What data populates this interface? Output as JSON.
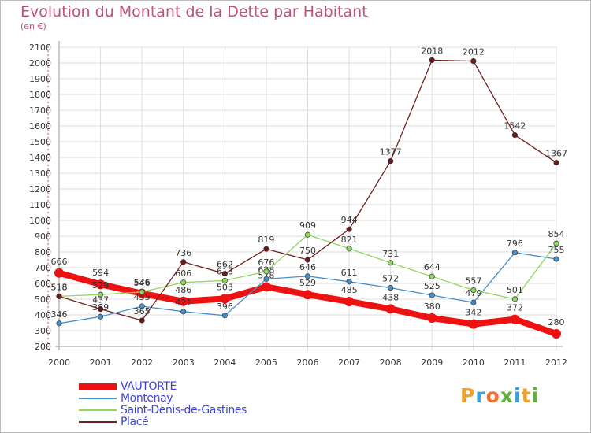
{
  "header": {
    "title": "Evolution du Montant de la Dette par Habitant",
    "subtitle": "(en €)"
  },
  "logo": {
    "text": "Proxiti",
    "letters": [
      "P",
      "r",
      "o",
      "x",
      "i",
      "t",
      "i"
    ],
    "colors": [
      "#f0a030",
      "#3aa0d8",
      "#f07030",
      "#60b040",
      "#3aa0d8",
      "#f0a030",
      "#60b040"
    ]
  },
  "chart_data": {
    "type": "line",
    "x": [
      "2000",
      "2001",
      "2002",
      "2003",
      "2004",
      "2005",
      "2006",
      "2007",
      "2008",
      "2009",
      "2010",
      "2011",
      "2012"
    ],
    "ylim": [
      200,
      2100
    ],
    "yticks": [
      200,
      300,
      400,
      500,
      600,
      700,
      800,
      900,
      1000,
      1100,
      1200,
      1300,
      1400,
      1500,
      1600,
      1700,
      1800,
      1900,
      2000,
      2100
    ],
    "grid": true,
    "legend_position": "bottom-left",
    "series": [
      {
        "name": "VAUTORTE",
        "color": "#ee1111",
        "values": [
          666,
          594,
          536,
          486,
          503,
          578,
          529,
          485,
          438,
          380,
          342,
          372,
          280
        ]
      },
      {
        "name": "Montenay",
        "color": "#4a90c8",
        "values": [
          346,
          389,
          455,
          421,
          396,
          628,
          646,
          611,
          572,
          525,
          479,
          796,
          755
        ]
      },
      {
        "name": "Saint-Denis-de-Gastines",
        "color": "#90d860",
        "values": [
          518,
          529,
          546,
          606,
          618,
          676,
          909,
          821,
          731,
          644,
          557,
          501,
          854
        ]
      },
      {
        "name": "Placé",
        "color": "#702020",
        "values": [
          518,
          437,
          365,
          736,
          662,
          819,
          750,
          944,
          1377,
          2018,
          2012,
          1542,
          1367
        ]
      }
    ]
  }
}
